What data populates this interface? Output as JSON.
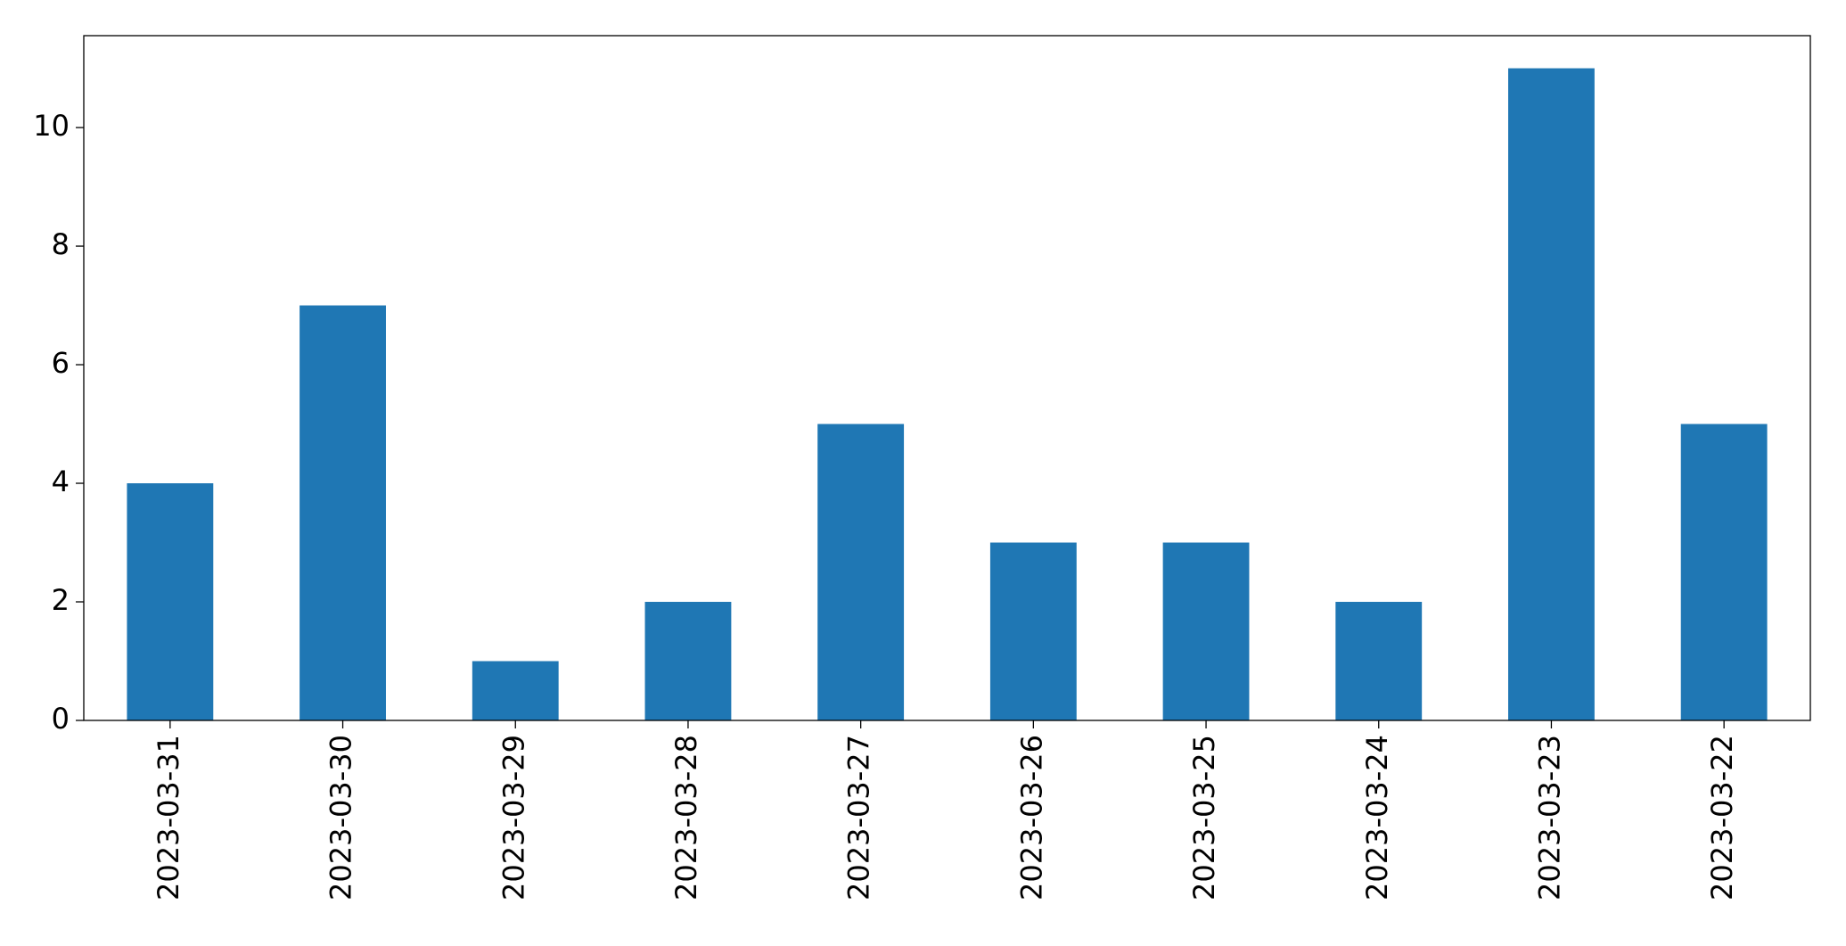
{
  "chart_data": {
    "type": "bar",
    "categories": [
      "2023-03-31",
      "2023-03-30",
      "2023-03-29",
      "2023-03-28",
      "2023-03-27",
      "2023-03-26",
      "2023-03-25",
      "2023-03-24",
      "2023-03-23",
      "2023-03-22"
    ],
    "values": [
      4,
      7,
      1,
      2,
      5,
      3,
      3,
      2,
      11,
      5
    ],
    "color": "#1f77b4",
    "ylim": [
      0,
      11.55
    ],
    "yticks": [
      0,
      2,
      4,
      6,
      8,
      10
    ],
    "grid": false
  }
}
